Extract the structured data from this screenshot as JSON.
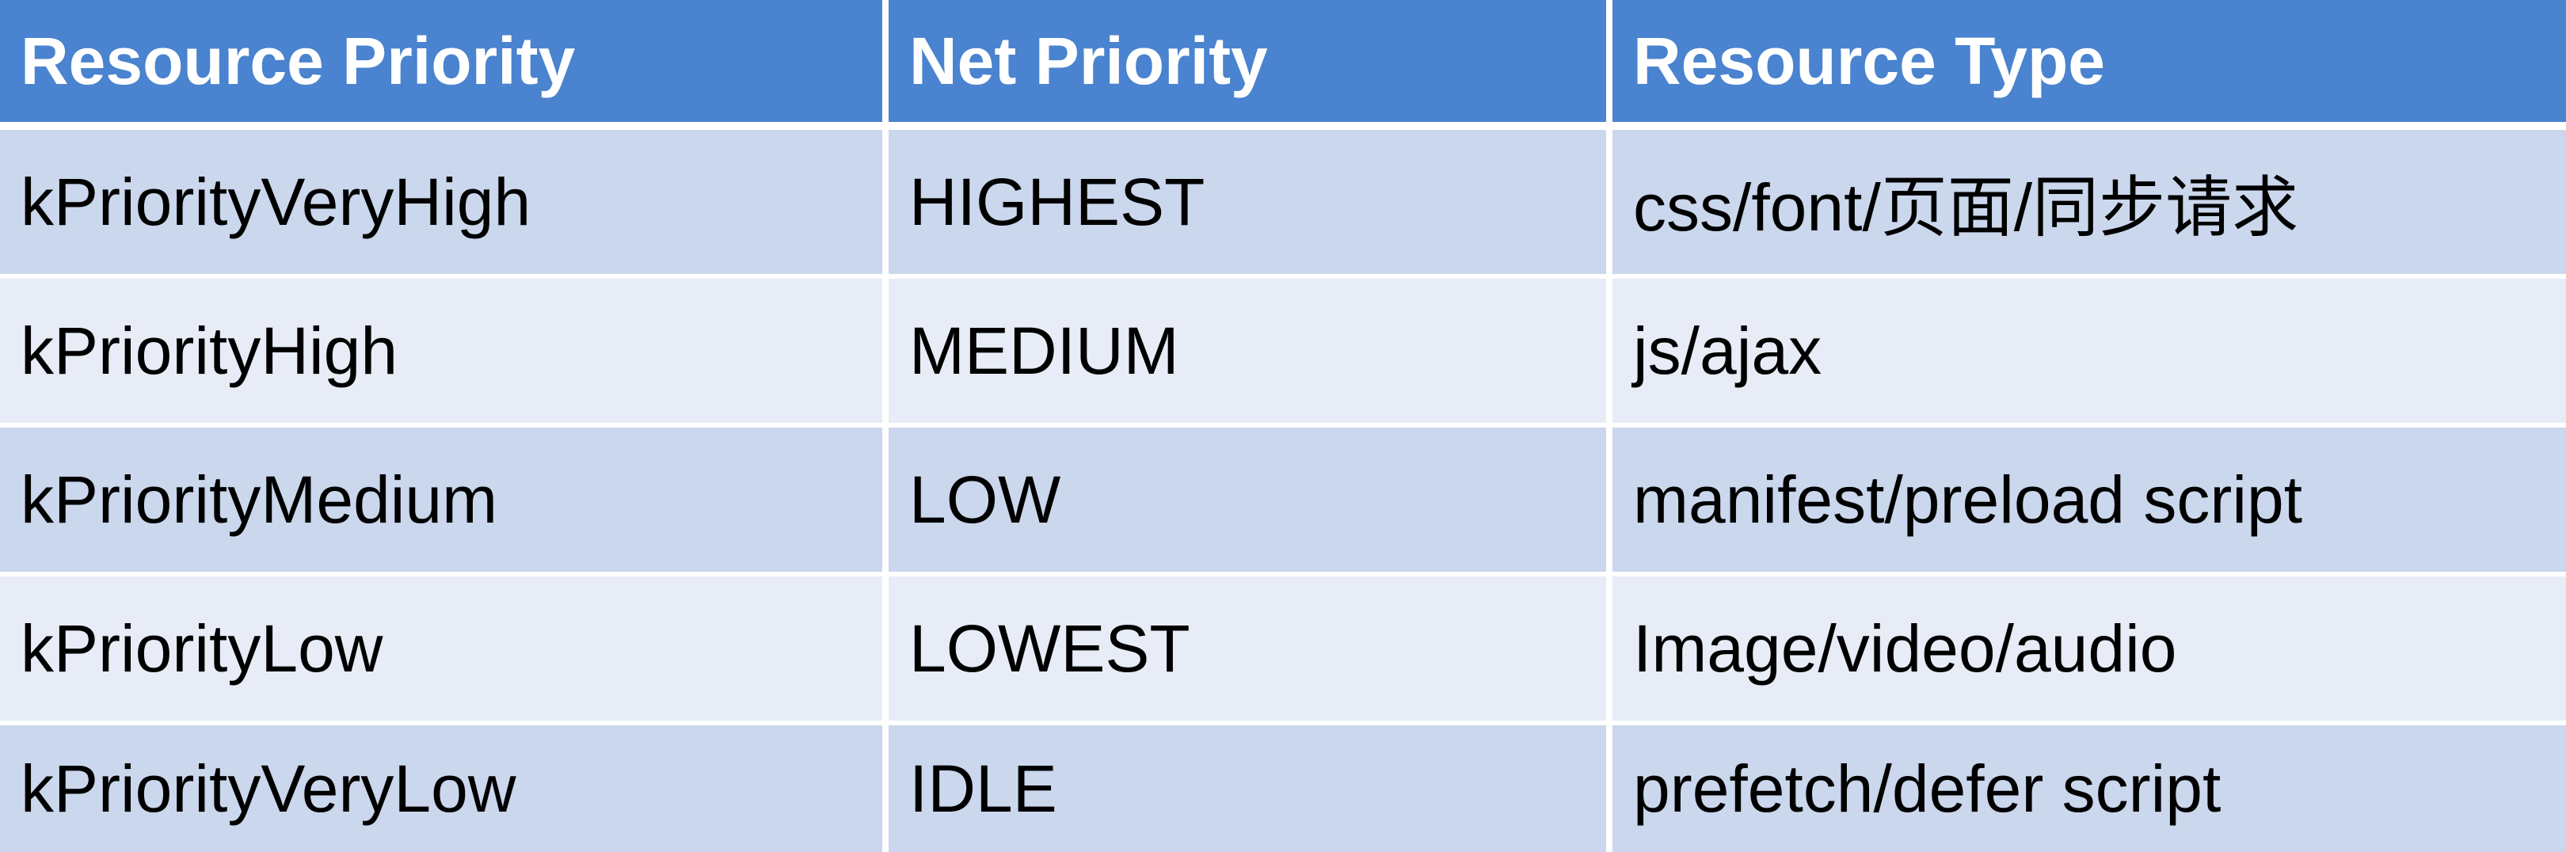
{
  "table": {
    "headers": [
      "Resource Priority",
      "Net Priority",
      "Resource Type"
    ],
    "rows": [
      [
        "kPriorityVeryHigh",
        "HIGHEST",
        "css/font/页面/同步请求"
      ],
      [
        "kPriorityHigh",
        "MEDIUM",
        "js/ajax"
      ],
      [
        "kPriorityMedium",
        "LOW",
        "manifest/preload script"
      ],
      [
        "kPriorityLow",
        "LOWEST",
        "Image/video/audio"
      ],
      [
        "kPriorityVeryLow",
        "IDLE",
        "prefetch/defer script"
      ]
    ],
    "colors": {
      "header": "#4a83cf",
      "row_dark": "#cad7ec",
      "row_light": "#e7ecf6"
    }
  }
}
